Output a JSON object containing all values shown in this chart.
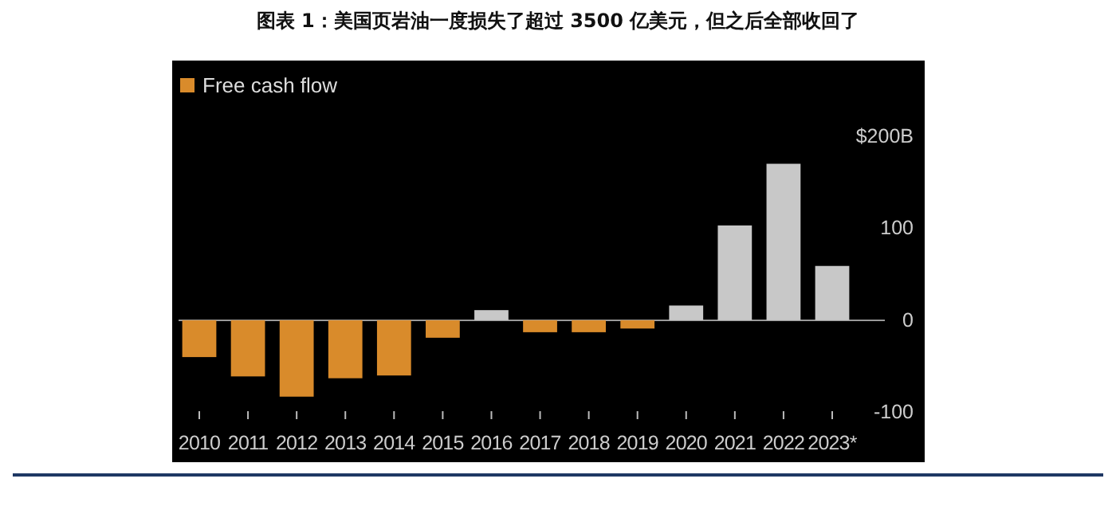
{
  "chart_data": {
    "type": "bar",
    "title": "图表 1：美国页岩油一度损失了超过 3500 亿美元，但之后全部收回了",
    "categories": [
      "2010",
      "2011",
      "2012",
      "2013",
      "2014",
      "2015",
      "2016",
      "2017",
      "2018",
      "2019",
      "2020",
      "2021",
      "2022",
      "2023*"
    ],
    "series": [
      {
        "name": "Free cash flow",
        "color": "#d98b2b",
        "colors": [
          "#d98b2b",
          "#d98b2b",
          "#d98b2b",
          "#d98b2b",
          "#d98b2b",
          "#d98b2b",
          "#c8c8c8",
          "#d98b2b",
          "#d98b2b",
          "#d98b2b",
          "#c8c8c8",
          "#c8c8c8",
          "#c8c8c8",
          "#c8c8c8"
        ],
        "values": [
          -40,
          -61,
          -83,
          -63,
          -60,
          -19,
          11,
          -13,
          -13,
          -9,
          16,
          103,
          170,
          59
        ]
      }
    ],
    "ylim": [
      -100,
      270
    ],
    "yticks": [
      {
        "value": 200,
        "label": "$200B"
      },
      100,
      0,
      -100
    ],
    "ref_lines": [
      {
        "axis": "y",
        "value": 0,
        "color": "#999999"
      }
    ],
    "legend": "top left",
    "grid": false
  }
}
